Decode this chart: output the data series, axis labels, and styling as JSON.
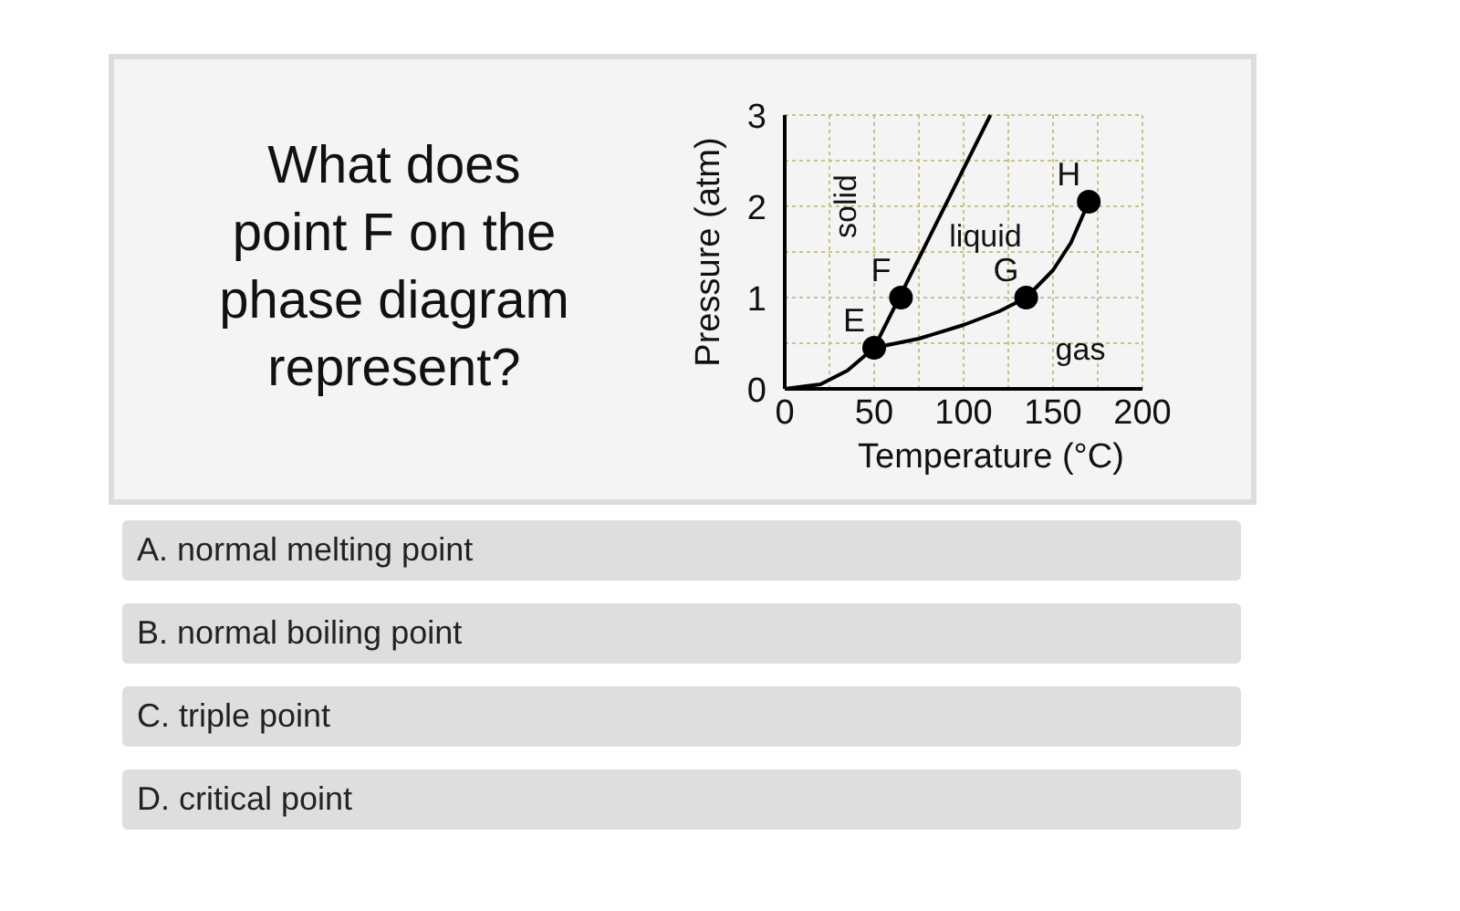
{
  "chart_data": {
    "type": "line",
    "title": "What does point F on the phase diagram represent?",
    "xlabel": "Temperature (°C)",
    "ylabel": "Pressure (atm)",
    "xlim": [
      0,
      200
    ],
    "ylim": [
      0,
      3
    ],
    "xticks": [
      0,
      {
        "value": 25,
        "label": null
      },
      50,
      {
        "value": 75,
        "label": null
      },
      100,
      {
        "value": 125,
        "label": null
      },
      150,
      {
        "value": 175,
        "label": null
      },
      200
    ],
    "yticks": [
      0,
      {
        "value": 0.5,
        "label": null
      },
      1,
      {
        "value": 1.5,
        "label": null
      },
      2,
      {
        "value": 2.5,
        "label": null
      },
      3
    ],
    "grid": true,
    "series": [
      {
        "color": "#000000",
        "x": [
          0,
          20,
          35,
          50
        ],
        "values": [
          0,
          0.05,
          0.2,
          0.45
        ]
      },
      {
        "color": "#000000",
        "x": [
          50,
          115
        ],
        "values": [
          0.45,
          3
        ]
      },
      {
        "color": "#000000",
        "x": [
          50,
          75,
          100,
          120,
          135,
          150,
          160,
          170
        ],
        "values": [
          0.45,
          0.55,
          0.7,
          0.85,
          1,
          1.3,
          1.6,
          2.05
        ]
      },
      {
        "type": "scatter",
        "marker": "circle",
        "color": "#000000",
        "x": [
          50,
          65,
          135,
          170
        ],
        "values": [
          0.45,
          1,
          1,
          2.05
        ]
      }
    ],
    "annotations": [
      {
        "text": "E",
        "x": 50,
        "y": 0.45
      },
      {
        "text": "F",
        "x": 65,
        "y": 1
      },
      {
        "text": "G",
        "x": 135,
        "y": 1
      },
      {
        "text": "H",
        "x": 170,
        "y": 2.05
      },
      "solid",
      "liquid",
      "gas",
      "A. normal melting point",
      "B. normal boiling point",
      "C. triple point",
      "D. critical point"
    ]
  }
}
